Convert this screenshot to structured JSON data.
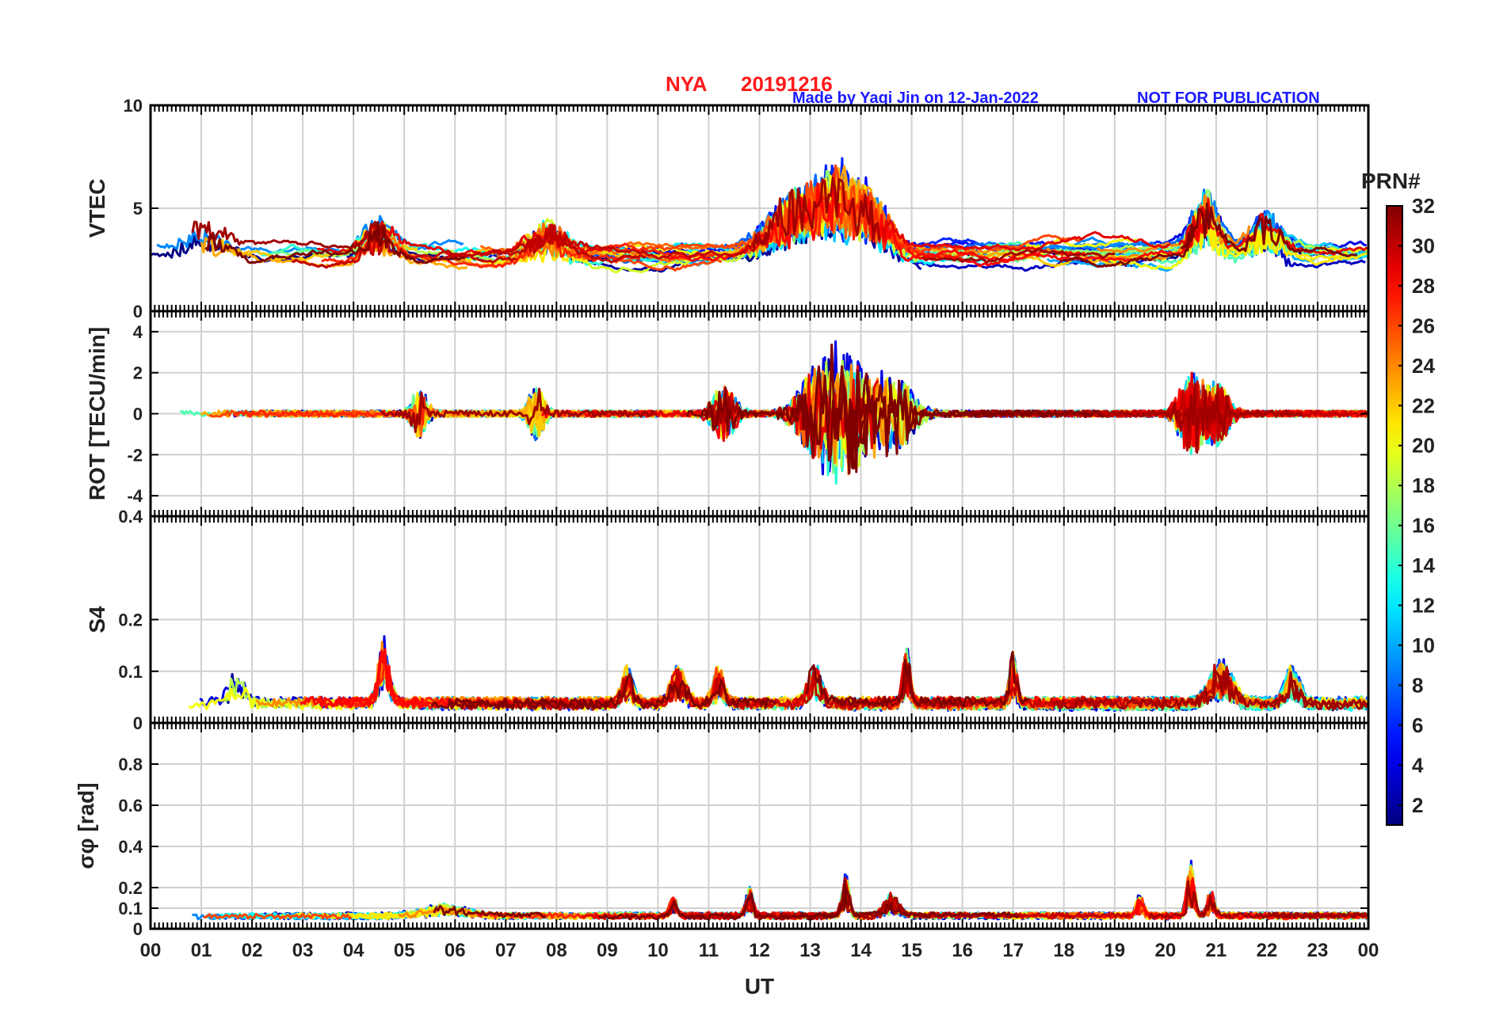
{
  "title": {
    "station": "NYA",
    "date": "20191216",
    "credit": "Made by Yaqi Jin on 12-Jan-2022",
    "notice": "NOT FOR PUBLICATION"
  },
  "colors": {
    "title": "#ff1a1a",
    "credit": "#1a1aff",
    "grid": "#d0d0d0",
    "axis": "#000000"
  },
  "chart_data": {
    "type": "line",
    "xlabel": "UT",
    "x_ticks": [
      "00",
      "01",
      "02",
      "03",
      "04",
      "05",
      "06",
      "07",
      "08",
      "09",
      "10",
      "11",
      "12",
      "13",
      "14",
      "15",
      "16",
      "17",
      "18",
      "19",
      "20",
      "21",
      "22",
      "23",
      "00"
    ],
    "xlim": [
      0,
      24
    ],
    "series_note": "One trace per GPS satellite PRN 1-32, colored by PRN (jet colormap)",
    "panels": [
      {
        "id": "vtec",
        "ylabel": "VTEC",
        "ylim": [
          0,
          10
        ],
        "y_ticks": [
          0,
          5,
          10
        ],
        "y_tick_labels": [
          "0",
          "5",
          "10"
        ],
        "baseline": 2.8,
        "noise": 0.5,
        "events": [
          {
            "t": 1.0,
            "amp": 1.2,
            "w": 0.6
          },
          {
            "t": 4.5,
            "amp": 1.5,
            "w": 0.4
          },
          {
            "t": 7.8,
            "amp": 1.4,
            "w": 0.5
          },
          {
            "t": 12.7,
            "amp": 2.8,
            "w": 0.7
          },
          {
            "t": 13.5,
            "amp": 3.2,
            "w": 0.5
          },
          {
            "t": 14.2,
            "amp": 2.7,
            "w": 0.5
          },
          {
            "t": 20.8,
            "amp": 2.9,
            "w": 0.35
          },
          {
            "t": 22.0,
            "amp": 1.8,
            "w": 0.4
          }
        ]
      },
      {
        "id": "rot",
        "ylabel": "ROT [TECU/min]",
        "ylim": [
          -5,
          5
        ],
        "y_ticks": [
          -4,
          -2,
          0,
          2,
          4
        ],
        "y_tick_labels": [
          "-4",
          "-2",
          "0",
          "2",
          "4"
        ],
        "baseline": 0,
        "noise": 0.15,
        "events": [
          {
            "t": 5.3,
            "amp": 1.2,
            "w": 0.2
          },
          {
            "t": 7.6,
            "amp": 1.3,
            "w": 0.2
          },
          {
            "t": 11.3,
            "amp": 1.4,
            "w": 0.3
          },
          {
            "t": 13.2,
            "amp": 2.5,
            "w": 0.5
          },
          {
            "t": 13.8,
            "amp": 2.8,
            "w": 0.5
          },
          {
            "t": 14.6,
            "amp": 2.0,
            "w": 0.5
          },
          {
            "t": 20.5,
            "amp": 2.0,
            "w": 0.3
          },
          {
            "t": 21.0,
            "amp": 1.6,
            "w": 0.3
          }
        ]
      },
      {
        "id": "s4",
        "ylabel": "S4",
        "ylim": [
          0,
          0.4
        ],
        "y_ticks": [
          0,
          0.1,
          0.2,
          0.4
        ],
        "y_tick_labels": [
          "0",
          "0.1",
          "0.2",
          "0.4"
        ],
        "baseline": 0.035,
        "noise": 0.012,
        "events": [
          {
            "t": 1.7,
            "amp": 0.06,
            "w": 0.2
          },
          {
            "t": 4.6,
            "amp": 0.12,
            "w": 0.15
          },
          {
            "t": 9.4,
            "amp": 0.07,
            "w": 0.15
          },
          {
            "t": 10.4,
            "amp": 0.07,
            "w": 0.2
          },
          {
            "t": 11.2,
            "amp": 0.07,
            "w": 0.15
          },
          {
            "t": 13.1,
            "amp": 0.07,
            "w": 0.2
          },
          {
            "t": 14.9,
            "amp": 0.11,
            "w": 0.1
          },
          {
            "t": 17.0,
            "amp": 0.1,
            "w": 0.1
          },
          {
            "t": 21.1,
            "amp": 0.08,
            "w": 0.3
          },
          {
            "t": 22.5,
            "amp": 0.07,
            "w": 0.2
          }
        ]
      },
      {
        "id": "sigphi",
        "ylabel": "σφ [rad]",
        "ylim": [
          0,
          1
        ],
        "y_ticks": [
          0,
          0.1,
          0.2,
          0.4,
          0.6,
          0.8
        ],
        "y_tick_labels": [
          "0",
          "0.1",
          "0.2",
          "0.4",
          "0.6",
          "0.8"
        ],
        "baseline": 0.06,
        "noise": 0.015,
        "events": [
          {
            "t": 5.8,
            "amp": 0.05,
            "w": 0.6
          },
          {
            "t": 10.3,
            "amp": 0.09,
            "w": 0.1
          },
          {
            "t": 11.8,
            "amp": 0.14,
            "w": 0.1
          },
          {
            "t": 13.7,
            "amp": 0.2,
            "w": 0.1
          },
          {
            "t": 14.6,
            "amp": 0.1,
            "w": 0.2
          },
          {
            "t": 19.5,
            "amp": 0.1,
            "w": 0.1
          },
          {
            "t": 20.5,
            "amp": 0.27,
            "w": 0.1
          },
          {
            "t": 20.9,
            "amp": 0.12,
            "w": 0.1
          }
        ]
      }
    ],
    "colorbar": {
      "label": "PRN#",
      "min": 1,
      "max": 32,
      "ticks": [
        2,
        4,
        6,
        8,
        10,
        12,
        14,
        16,
        18,
        20,
        22,
        24,
        26,
        28,
        30,
        32
      ],
      "tick_labels": [
        "2",
        "4",
        "6",
        "8",
        "10",
        "12",
        "14",
        "16",
        "18",
        "20",
        "22",
        "24",
        "26",
        "28",
        "30",
        "32"
      ]
    }
  }
}
